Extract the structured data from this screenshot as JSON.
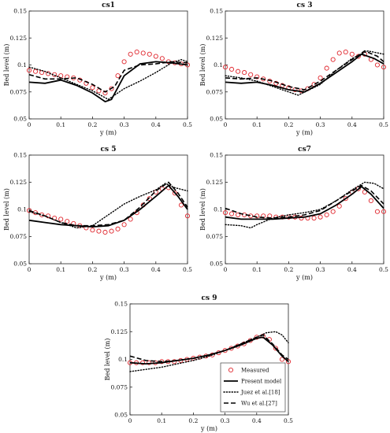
{
  "chart_data": [
    {
      "type": "line",
      "title": "cs1",
      "xlabel": "y (m)",
      "ylabel": "Bed level (m)",
      "xlim": [
        0,
        0.5
      ],
      "ylim": [
        0.05,
        0.15
      ],
      "xticks": [
        "0",
        "0.1",
        "0.2",
        "0.3",
        "0.4",
        "0.5"
      ],
      "yticks": [
        "0.05",
        "0.075",
        "0.1",
        "0.125",
        "0.15"
      ],
      "grid": false,
      "series": [
        {
          "name": "Measured",
          "style": "circles",
          "x": [
            0.0,
            0.02,
            0.04,
            0.06,
            0.08,
            0.1,
            0.12,
            0.14,
            0.16,
            0.18,
            0.2,
            0.22,
            0.24,
            0.26,
            0.28,
            0.3,
            0.32,
            0.34,
            0.36,
            0.38,
            0.4,
            0.42,
            0.44,
            0.46,
            0.48,
            0.5
          ],
          "y": [
            0.095,
            0.094,
            0.093,
            0.092,
            0.091,
            0.09,
            0.089,
            0.088,
            0.086,
            0.083,
            0.079,
            0.076,
            0.074,
            0.078,
            0.09,
            0.103,
            0.11,
            0.112,
            0.111,
            0.11,
            0.108,
            0.106,
            0.103,
            0.102,
            0.101,
            0.1
          ]
        },
        {
          "name": "Present model",
          "style": "solid",
          "x": [
            0,
            0.05,
            0.1,
            0.15,
            0.2,
            0.24,
            0.26,
            0.3,
            0.35,
            0.4,
            0.45,
            0.5
          ],
          "y": [
            0.084,
            0.083,
            0.086,
            0.081,
            0.074,
            0.066,
            0.068,
            0.09,
            0.101,
            0.103,
            0.102,
            0.1
          ]
        },
        {
          "name": "Juez et al.[18]",
          "style": "dotted",
          "x": [
            0,
            0.05,
            0.1,
            0.15,
            0.2,
            0.25,
            0.3,
            0.35,
            0.4,
            0.45,
            0.48,
            0.5
          ],
          "y": [
            0.098,
            0.094,
            0.088,
            0.082,
            0.076,
            0.068,
            0.078,
            0.085,
            0.093,
            0.102,
            0.105,
            0.103
          ]
        },
        {
          "name": "Wu et al.[27]",
          "style": "dashed",
          "x": [
            0,
            0.05,
            0.1,
            0.15,
            0.2,
            0.24,
            0.27,
            0.3,
            0.35,
            0.4,
            0.45,
            0.5
          ],
          "y": [
            0.091,
            0.087,
            0.087,
            0.088,
            0.082,
            0.075,
            0.08,
            0.095,
            0.1,
            0.101,
            0.103,
            0.102
          ]
        }
      ]
    },
    {
      "type": "line",
      "title": "cs 3",
      "xlabel": "y (m)",
      "ylabel": "Bed level (m)",
      "xlim": [
        0,
        0.5
      ],
      "ylim": [
        0.05,
        0.15
      ],
      "xticks": [
        "0",
        "0.1",
        "0.2",
        "0.3",
        "0.4",
        "0.5"
      ],
      "yticks": [
        "0.05",
        "0.075",
        "0.1",
        "0.125",
        "0.15"
      ],
      "grid": false,
      "series": [
        {
          "name": "Measured",
          "style": "circles",
          "x": [
            0.0,
            0.02,
            0.04,
            0.06,
            0.08,
            0.1,
            0.12,
            0.14,
            0.16,
            0.18,
            0.2,
            0.22,
            0.24,
            0.26,
            0.28,
            0.3,
            0.32,
            0.34,
            0.36,
            0.38,
            0.4,
            0.42,
            0.44,
            0.46,
            0.48,
            0.5
          ],
          "y": [
            0.098,
            0.096,
            0.094,
            0.093,
            0.091,
            0.089,
            0.087,
            0.085,
            0.083,
            0.081,
            0.079,
            0.077,
            0.076,
            0.078,
            0.082,
            0.088,
            0.097,
            0.105,
            0.111,
            0.112,
            0.11,
            0.108,
            0.11,
            0.105,
            0.1,
            0.098
          ]
        },
        {
          "name": "Present model",
          "style": "solid",
          "x": [
            0,
            0.05,
            0.1,
            0.15,
            0.2,
            0.25,
            0.3,
            0.35,
            0.4,
            0.43,
            0.47,
            0.5
          ],
          "y": [
            0.084,
            0.083,
            0.084,
            0.081,
            0.077,
            0.075,
            0.083,
            0.093,
            0.103,
            0.11,
            0.106,
            0.101
          ]
        },
        {
          "name": "Juez et al.[18]",
          "style": "dotted",
          "x": [
            0,
            0.05,
            0.1,
            0.15,
            0.2,
            0.23,
            0.3,
            0.35,
            0.4,
            0.45,
            0.5
          ],
          "y": [
            0.09,
            0.088,
            0.085,
            0.08,
            0.075,
            0.072,
            0.082,
            0.095,
            0.106,
            0.113,
            0.11
          ]
        },
        {
          "name": "Wu et al.[27]",
          "style": "dashed",
          "x": [
            0,
            0.05,
            0.1,
            0.15,
            0.2,
            0.25,
            0.3,
            0.35,
            0.4,
            0.44,
            0.48,
            0.5
          ],
          "y": [
            0.088,
            0.087,
            0.088,
            0.085,
            0.08,
            0.077,
            0.085,
            0.095,
            0.105,
            0.113,
            0.108,
            0.103
          ]
        }
      ]
    },
    {
      "type": "line",
      "title": "cs 5",
      "xlabel": "y (m)",
      "ylabel": "Bed level (m)",
      "xlim": [
        0,
        0.5
      ],
      "ylim": [
        0.05,
        0.15
      ],
      "xticks": [
        "0",
        "0.1",
        "0.2",
        "0.3",
        "0.4",
        "0.5"
      ],
      "yticks": [
        "0.05",
        "0.075",
        "0.1",
        "0.125",
        "0.15"
      ],
      "grid": false,
      "series": [
        {
          "name": "Measured",
          "style": "circles",
          "x": [
            0.0,
            0.02,
            0.04,
            0.06,
            0.08,
            0.1,
            0.12,
            0.14,
            0.16,
            0.18,
            0.2,
            0.22,
            0.24,
            0.26,
            0.28,
            0.3,
            0.32,
            0.34,
            0.36,
            0.38,
            0.4,
            0.42,
            0.44,
            0.46,
            0.48,
            0.5
          ],
          "y": [
            0.099,
            0.097,
            0.095,
            0.094,
            0.092,
            0.091,
            0.089,
            0.087,
            0.085,
            0.083,
            0.081,
            0.08,
            0.079,
            0.08,
            0.082,
            0.086,
            0.091,
            0.097,
            0.104,
            0.11,
            0.116,
            0.119,
            0.12,
            0.115,
            0.104,
            0.094
          ]
        },
        {
          "name": "Present model",
          "style": "solid",
          "x": [
            0,
            0.05,
            0.1,
            0.15,
            0.2,
            0.25,
            0.3,
            0.35,
            0.4,
            0.44,
            0.47,
            0.5
          ],
          "y": [
            0.09,
            0.088,
            0.086,
            0.085,
            0.084,
            0.085,
            0.09,
            0.1,
            0.112,
            0.122,
            0.112,
            0.1
          ]
        },
        {
          "name": "Juez et al.[18]",
          "style": "dotted",
          "x": [
            0,
            0.05,
            0.1,
            0.15,
            0.2,
            0.25,
            0.3,
            0.35,
            0.4,
            0.43,
            0.46,
            0.5
          ],
          "y": [
            0.098,
            0.094,
            0.088,
            0.083,
            0.085,
            0.095,
            0.105,
            0.112,
            0.118,
            0.124,
            0.12,
            0.117
          ]
        },
        {
          "name": "Wu et al.[27]",
          "style": "dashed",
          "x": [
            0,
            0.05,
            0.1,
            0.15,
            0.2,
            0.25,
            0.3,
            0.35,
            0.4,
            0.44,
            0.47,
            0.5
          ],
          "y": [
            0.099,
            0.094,
            0.088,
            0.085,
            0.085,
            0.086,
            0.09,
            0.102,
            0.117,
            0.125,
            0.115,
            0.102
          ]
        }
      ]
    },
    {
      "type": "line",
      "title": "cs7",
      "xlabel": "y (m)",
      "ylabel": "Bed level (m)",
      "xlim": [
        0,
        0.5
      ],
      "ylim": [
        0.05,
        0.15
      ],
      "xticks": [
        "0",
        "0.1",
        "0.2",
        "0.3",
        "0.4",
        "0.5"
      ],
      "yticks": [
        "0.05",
        "0.075",
        "0.1",
        "0.125",
        "0.15"
      ],
      "grid": false,
      "series": [
        {
          "name": "Measured",
          "style": "circles",
          "x": [
            0.0,
            0.02,
            0.04,
            0.06,
            0.08,
            0.1,
            0.12,
            0.14,
            0.16,
            0.18,
            0.2,
            0.22,
            0.24,
            0.26,
            0.28,
            0.3,
            0.32,
            0.34,
            0.36,
            0.38,
            0.4,
            0.42,
            0.44,
            0.46,
            0.48,
            0.5
          ],
          "y": [
            0.097,
            0.096,
            0.095,
            0.095,
            0.094,
            0.094,
            0.094,
            0.094,
            0.093,
            0.093,
            0.093,
            0.093,
            0.092,
            0.092,
            0.092,
            0.093,
            0.095,
            0.098,
            0.103,
            0.11,
            0.116,
            0.119,
            0.116,
            0.108,
            0.098,
            0.098
          ]
        },
        {
          "name": "Present model",
          "style": "solid",
          "x": [
            0,
            0.05,
            0.1,
            0.15,
            0.2,
            0.25,
            0.3,
            0.35,
            0.4,
            0.43,
            0.46,
            0.5
          ],
          "y": [
            0.093,
            0.091,
            0.091,
            0.091,
            0.092,
            0.093,
            0.096,
            0.104,
            0.114,
            0.121,
            0.114,
            0.101
          ]
        },
        {
          "name": "Juez et al.[18]",
          "style": "dotted",
          "x": [
            0,
            0.05,
            0.08,
            0.1,
            0.15,
            0.2,
            0.25,
            0.3,
            0.35,
            0.4,
            0.44,
            0.47,
            0.5
          ],
          "y": [
            0.086,
            0.085,
            0.083,
            0.086,
            0.092,
            0.095,
            0.097,
            0.1,
            0.108,
            0.118,
            0.125,
            0.124,
            0.119
          ]
        },
        {
          "name": "Wu et al.[27]",
          "style": "dashed",
          "x": [
            0,
            0.05,
            0.1,
            0.15,
            0.2,
            0.25,
            0.3,
            0.35,
            0.4,
            0.43,
            0.46,
            0.5
          ],
          "y": [
            0.101,
            0.096,
            0.093,
            0.092,
            0.093,
            0.095,
            0.099,
            0.108,
            0.117,
            0.122,
            0.117,
            0.105
          ]
        }
      ]
    },
    {
      "type": "line",
      "title": "cs 9",
      "xlabel": "y (m)",
      "ylabel": "Bed level (m)",
      "xlim": [
        0,
        0.5
      ],
      "ylim": [
        0.05,
        0.15
      ],
      "xticks": [
        "0",
        "0.1",
        "0.2",
        "0.3",
        "0.4",
        "0.5"
      ],
      "yticks": [
        "0.05",
        "0.075",
        "0.1",
        "0.125",
        "0.15"
      ],
      "grid": false,
      "legend": "lower-right",
      "series": [
        {
          "name": "Measured",
          "style": "circles",
          "x": [
            0.0,
            0.02,
            0.04,
            0.06,
            0.08,
            0.1,
            0.12,
            0.14,
            0.16,
            0.18,
            0.2,
            0.22,
            0.24,
            0.26,
            0.28,
            0.3,
            0.32,
            0.34,
            0.36,
            0.38,
            0.4,
            0.42,
            0.44,
            0.46,
            0.48,
            0.5
          ],
          "y": [
            0.097,
            0.097,
            0.097,
            0.097,
            0.097,
            0.098,
            0.098,
            0.098,
            0.099,
            0.1,
            0.101,
            0.102,
            0.103,
            0.104,
            0.106,
            0.108,
            0.11,
            0.112,
            0.114,
            0.117,
            0.12,
            0.121,
            0.118,
            0.11,
            0.1,
            0.098
          ]
        },
        {
          "name": "Present model",
          "style": "solid",
          "x": [
            0,
            0.05,
            0.1,
            0.15,
            0.2,
            0.25,
            0.3,
            0.35,
            0.4,
            0.42,
            0.45,
            0.48,
            0.5
          ],
          "y": [
            0.097,
            0.096,
            0.097,
            0.099,
            0.101,
            0.104,
            0.108,
            0.113,
            0.119,
            0.12,
            0.113,
            0.103,
            0.098
          ]
        },
        {
          "name": "Juez et al.[18]",
          "style": "dotted",
          "x": [
            0,
            0.05,
            0.1,
            0.15,
            0.2,
            0.25,
            0.3,
            0.35,
            0.4,
            0.43,
            0.46,
            0.48,
            0.5
          ],
          "y": [
            0.089,
            0.091,
            0.093,
            0.096,
            0.099,
            0.103,
            0.108,
            0.114,
            0.12,
            0.124,
            0.125,
            0.122,
            0.115
          ]
        },
        {
          "name": "Wu et al.[27]",
          "style": "dashed",
          "x": [
            0,
            0.05,
            0.1,
            0.15,
            0.2,
            0.25,
            0.3,
            0.35,
            0.4,
            0.42,
            0.45,
            0.48,
            0.5
          ],
          "y": [
            0.103,
            0.099,
            0.098,
            0.099,
            0.101,
            0.104,
            0.108,
            0.114,
            0.12,
            0.122,
            0.114,
            0.104,
            0.1
          ]
        }
      ]
    }
  ]
}
